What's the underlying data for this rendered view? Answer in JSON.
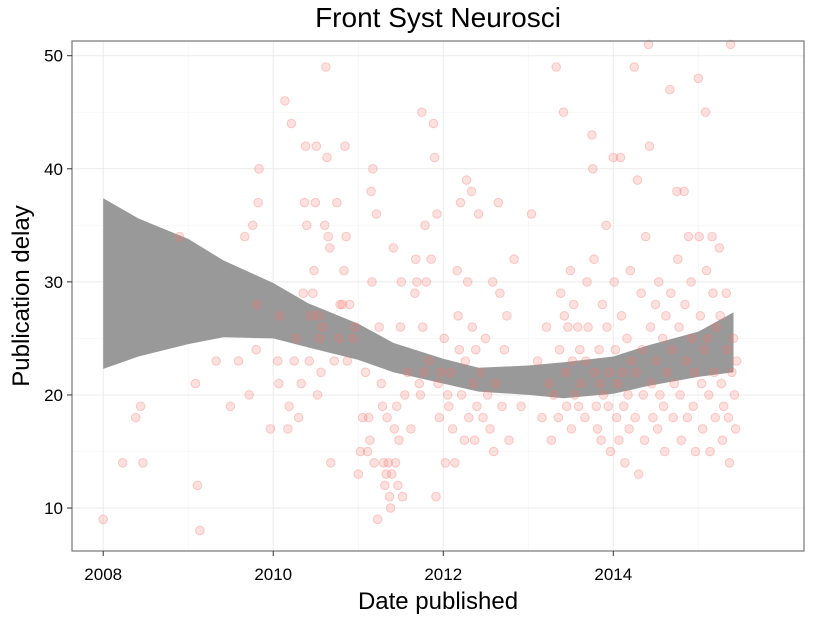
{
  "chart_data": {
    "type": "scatter",
    "title": "Front Syst Neurosci",
    "xlabel": "Date published",
    "ylabel": "Publication delay",
    "x_ticks": [
      "2008",
      "2010",
      "2012",
      "2014"
    ],
    "y_ticks": [
      "10",
      "20",
      "30",
      "40",
      "50"
    ],
    "xlim": [
      "2007-08-20",
      "2016-03-30"
    ],
    "ylim": [
      6.2,
      51.3
    ],
    "grid": true,
    "legend": "none",
    "point_color": "#f8766d",
    "smooth_band_color": "#999999",
    "smooth_line_color": "#888888",
    "points": [
      {
        "x": "2008-01-01",
        "y": 9
      },
      {
        "x": "2008-03-25",
        "y": 14
      },
      {
        "x": "2008-05-20",
        "y": 18
      },
      {
        "x": "2008-06-10",
        "y": 19
      },
      {
        "x": "2008-06-20",
        "y": 14
      },
      {
        "x": "2008-11-25",
        "y": 34
      },
      {
        "x": "2009-02-01",
        "y": 21
      },
      {
        "x": "2009-02-10",
        "y": 12
      },
      {
        "x": "2009-02-20",
        "y": 8
      },
      {
        "x": "2009-05-01",
        "y": 23
      },
      {
        "x": "2009-07-01",
        "y": 19
      },
      {
        "x": "2009-08-05",
        "y": 23
      },
      {
        "x": "2009-09-01",
        "y": 34
      },
      {
        "x": "2009-09-20",
        "y": 20
      },
      {
        "x": "2009-10-05",
        "y": 35
      },
      {
        "x": "2009-10-20",
        "y": 24
      },
      {
        "x": "2009-10-25",
        "y": 28
      },
      {
        "x": "2009-10-28",
        "y": 37
      },
      {
        "x": "2009-11-01",
        "y": 40
      },
      {
        "x": "2009-12-20",
        "y": 17
      },
      {
        "x": "2010-01-20",
        "y": 23
      },
      {
        "x": "2010-01-25",
        "y": 21
      },
      {
        "x": "2010-01-28",
        "y": 27
      },
      {
        "x": "2010-02-20",
        "y": 46
      },
      {
        "x": "2010-03-05",
        "y": 17
      },
      {
        "x": "2010-03-10",
        "y": 19
      },
      {
        "x": "2010-03-20",
        "y": 44
      },
      {
        "x": "2010-04-01",
        "y": 23
      },
      {
        "x": "2010-04-10",
        "y": 25
      },
      {
        "x": "2010-04-20",
        "y": 18
      },
      {
        "x": "2010-05-01",
        "y": 21
      },
      {
        "x": "2010-05-10",
        "y": 29
      },
      {
        "x": "2010-05-15",
        "y": 37
      },
      {
        "x": "2010-05-20",
        "y": 42
      },
      {
        "x": "2010-05-25",
        "y": 35
      },
      {
        "x": "2010-06-05",
        "y": 23
      },
      {
        "x": "2010-06-10",
        "y": 27
      },
      {
        "x": "2010-06-20",
        "y": 29
      },
      {
        "x": "2010-06-25",
        "y": 31
      },
      {
        "x": "2010-07-01",
        "y": 37
      },
      {
        "x": "2010-07-05",
        "y": 42
      },
      {
        "x": "2010-07-10",
        "y": 20
      },
      {
        "x": "2010-07-15",
        "y": 27
      },
      {
        "x": "2010-07-20",
        "y": 25
      },
      {
        "x": "2010-07-25",
        "y": 22
      },
      {
        "x": "2010-08-01",
        "y": 26
      },
      {
        "x": "2010-08-10",
        "y": 35
      },
      {
        "x": "2010-08-15",
        "y": 49
      },
      {
        "x": "2010-08-20",
        "y": 41
      },
      {
        "x": "2010-08-25",
        "y": 34
      },
      {
        "x": "2010-09-01",
        "y": 33
      },
      {
        "x": "2010-09-05",
        "y": 14
      },
      {
        "x": "2010-09-20",
        "y": 23
      },
      {
        "x": "2010-10-01",
        "y": 37
      },
      {
        "x": "2010-10-10",
        "y": 25
      },
      {
        "x": "2010-10-15",
        "y": 28
      },
      {
        "x": "2010-10-25",
        "y": 28
      },
      {
        "x": "2010-11-01",
        "y": 31
      },
      {
        "x": "2010-11-05",
        "y": 42
      },
      {
        "x": "2010-11-10",
        "y": 34
      },
      {
        "x": "2010-11-15",
        "y": 23
      },
      {
        "x": "2010-11-25",
        "y": 28
      },
      {
        "x": "2010-12-10",
        "y": 25
      },
      {
        "x": "2010-12-20",
        "y": 26
      },
      {
        "x": "2011-01-01",
        "y": 13
      },
      {
        "x": "2011-01-10",
        "y": 15
      },
      {
        "x": "2011-01-20",
        "y": 18
      },
      {
        "x": "2011-02-01",
        "y": 22
      },
      {
        "x": "2011-02-10",
        "y": 15
      },
      {
        "x": "2011-02-15",
        "y": 18
      },
      {
        "x": "2011-02-20",
        "y": 16
      },
      {
        "x": "2011-02-25",
        "y": 38
      },
      {
        "x": "2011-03-01",
        "y": 30
      },
      {
        "x": "2011-03-05",
        "y": 40
      },
      {
        "x": "2011-03-10",
        "y": 14
      },
      {
        "x": "2011-03-20",
        "y": 36
      },
      {
        "x": "2011-03-25",
        "y": 9
      },
      {
        "x": "2011-04-01",
        "y": 26
      },
      {
        "x": "2011-04-10",
        "y": 21
      },
      {
        "x": "2011-04-15",
        "y": 19
      },
      {
        "x": "2011-04-20",
        "y": 14
      },
      {
        "x": "2011-04-25",
        "y": 12
      },
      {
        "x": "2011-05-01",
        "y": 13
      },
      {
        "x": "2011-05-05",
        "y": 18
      },
      {
        "x": "2011-05-10",
        "y": 14
      },
      {
        "x": "2011-05-15",
        "y": 11
      },
      {
        "x": "2011-05-20",
        "y": 10
      },
      {
        "x": "2011-05-25",
        "y": 13
      },
      {
        "x": "2011-06-01",
        "y": 33
      },
      {
        "x": "2011-06-05",
        "y": 17
      },
      {
        "x": "2011-06-10",
        "y": 14
      },
      {
        "x": "2011-06-15",
        "y": 19
      },
      {
        "x": "2011-06-20",
        "y": 12
      },
      {
        "x": "2011-06-25",
        "y": 16
      },
      {
        "x": "2011-07-01",
        "y": 26
      },
      {
        "x": "2011-07-05",
        "y": 30
      },
      {
        "x": "2011-07-10",
        "y": 11
      },
      {
        "x": "2011-07-20",
        "y": 20
      },
      {
        "x": "2011-08-01",
        "y": 22
      },
      {
        "x": "2011-08-15",
        "y": 17
      },
      {
        "x": "2011-09-01",
        "y": 29
      },
      {
        "x": "2011-09-05",
        "y": 32
      },
      {
        "x": "2011-09-10",
        "y": 30
      },
      {
        "x": "2011-09-20",
        "y": 21
      },
      {
        "x": "2011-09-25",
        "y": 20
      },
      {
        "x": "2011-10-01",
        "y": 45
      },
      {
        "x": "2011-10-05",
        "y": 26
      },
      {
        "x": "2011-10-10",
        "y": 22
      },
      {
        "x": "2011-10-15",
        "y": 35
      },
      {
        "x": "2011-10-20",
        "y": 30
      },
      {
        "x": "2011-11-01",
        "y": 23
      },
      {
        "x": "2011-11-10",
        "y": 32
      },
      {
        "x": "2011-11-20",
        "y": 44
      },
      {
        "x": "2011-11-25",
        "y": 41
      },
      {
        "x": "2011-12-01",
        "y": 11
      },
      {
        "x": "2011-12-05",
        "y": 36
      },
      {
        "x": "2011-12-10",
        "y": 21
      },
      {
        "x": "2011-12-15",
        "y": 18
      },
      {
        "x": "2011-12-20",
        "y": 22
      },
      {
        "x": "2012-01-05",
        "y": 25
      },
      {
        "x": "2012-01-10",
        "y": 14
      },
      {
        "x": "2012-01-20",
        "y": 20
      },
      {
        "x": "2012-01-25",
        "y": 19
      },
      {
        "x": "2012-02-01",
        "y": 22
      },
      {
        "x": "2012-02-10",
        "y": 17
      },
      {
        "x": "2012-02-20",
        "y": 14
      },
      {
        "x": "2012-03-01",
        "y": 31
      },
      {
        "x": "2012-03-05",
        "y": 27
      },
      {
        "x": "2012-03-10",
        "y": 24
      },
      {
        "x": "2012-03-15",
        "y": 37
      },
      {
        "x": "2012-03-20",
        "y": 20
      },
      {
        "x": "2012-04-01",
        "y": 16
      },
      {
        "x": "2012-04-05",
        "y": 23
      },
      {
        "x": "2012-04-10",
        "y": 39
      },
      {
        "x": "2012-04-15",
        "y": 30
      },
      {
        "x": "2012-04-20",
        "y": 18
      },
      {
        "x": "2012-05-01",
        "y": 38
      },
      {
        "x": "2012-05-05",
        "y": 26
      },
      {
        "x": "2012-05-10",
        "y": 21
      },
      {
        "x": "2012-05-15",
        "y": 16
      },
      {
        "x": "2012-05-20",
        "y": 24
      },
      {
        "x": "2012-05-25",
        "y": 19
      },
      {
        "x": "2012-06-01",
        "y": 36
      },
      {
        "x": "2012-06-10",
        "y": 22
      },
      {
        "x": "2012-06-20",
        "y": 18
      },
      {
        "x": "2012-07-01",
        "y": 25
      },
      {
        "x": "2012-07-10",
        "y": 20
      },
      {
        "x": "2012-07-20",
        "y": 17
      },
      {
        "x": "2012-08-01",
        "y": 30
      },
      {
        "x": "2012-08-05",
        "y": 15
      },
      {
        "x": "2012-08-15",
        "y": 21
      },
      {
        "x": "2012-08-25",
        "y": 37
      },
      {
        "x": "2012-09-01",
        "y": 29
      },
      {
        "x": "2012-09-10",
        "y": 19
      },
      {
        "x": "2012-09-20",
        "y": 24
      },
      {
        "x": "2012-10-01",
        "y": 27
      },
      {
        "x": "2012-10-10",
        "y": 16
      },
      {
        "x": "2012-11-01",
        "y": 32
      },
      {
        "x": "2012-12-01",
        "y": 19
      },
      {
        "x": "2013-01-15",
        "y": 36
      },
      {
        "x": "2013-02-10",
        "y": 23
      },
      {
        "x": "2013-03-01",
        "y": 18
      },
      {
        "x": "2013-03-20",
        "y": 26
      },
      {
        "x": "2013-04-01",
        "y": 21
      },
      {
        "x": "2013-04-10",
        "y": 16
      },
      {
        "x": "2013-04-20",
        "y": 20
      },
      {
        "x": "2013-05-01",
        "y": 49
      },
      {
        "x": "2013-05-10",
        "y": 18
      },
      {
        "x": "2013-05-15",
        "y": 24
      },
      {
        "x": "2013-05-20",
        "y": 29
      },
      {
        "x": "2013-06-01",
        "y": 45
      },
      {
        "x": "2013-06-05",
        "y": 27
      },
      {
        "x": "2013-06-10",
        "y": 22
      },
      {
        "x": "2013-06-15",
        "y": 19
      },
      {
        "x": "2013-06-20",
        "y": 26
      },
      {
        "x": "2013-07-01",
        "y": 31
      },
      {
        "x": "2013-07-05",
        "y": 17
      },
      {
        "x": "2013-07-10",
        "y": 23
      },
      {
        "x": "2013-07-15",
        "y": 28
      },
      {
        "x": "2013-07-20",
        "y": 20
      },
      {
        "x": "2013-08-01",
        "y": 26
      },
      {
        "x": "2013-08-05",
        "y": 19
      },
      {
        "x": "2013-08-10",
        "y": 24
      },
      {
        "x": "2013-08-15",
        "y": 21
      },
      {
        "x": "2013-09-01",
        "y": 18
      },
      {
        "x": "2013-09-05",
        "y": 23
      },
      {
        "x": "2013-09-10",
        "y": 30
      },
      {
        "x": "2013-09-15",
        "y": 26
      },
      {
        "x": "2013-10-01",
        "y": 43
      },
      {
        "x": "2013-10-05",
        "y": 40
      },
      {
        "x": "2013-10-10",
        "y": 32
      },
      {
        "x": "2013-10-15",
        "y": 22
      },
      {
        "x": "2013-10-20",
        "y": 19
      },
      {
        "x": "2013-10-25",
        "y": 17
      },
      {
        "x": "2013-11-01",
        "y": 24
      },
      {
        "x": "2013-11-05",
        "y": 21
      },
      {
        "x": "2013-11-10",
        "y": 16
      },
      {
        "x": "2013-11-15",
        "y": 28
      },
      {
        "x": "2013-11-20",
        "y": 20
      },
      {
        "x": "2013-12-01",
        "y": 35
      },
      {
        "x": "2013-12-05",
        "y": 26
      },
      {
        "x": "2013-12-10",
        "y": 19
      },
      {
        "x": "2013-12-15",
        "y": 22
      },
      {
        "x": "2013-12-20",
        "y": 15
      },
      {
        "x": "2014-01-01",
        "y": 41
      },
      {
        "x": "2014-01-05",
        "y": 30
      },
      {
        "x": "2014-01-10",
        "y": 24
      },
      {
        "x": "2014-01-15",
        "y": 18
      },
      {
        "x": "2014-01-20",
        "y": 21
      },
      {
        "x": "2014-01-25",
        "y": 16
      },
      {
        "x": "2014-02-01",
        "y": 41
      },
      {
        "x": "2014-02-05",
        "y": 27
      },
      {
        "x": "2014-02-10",
        "y": 22
      },
      {
        "x": "2014-02-15",
        "y": 19
      },
      {
        "x": "2014-02-20",
        "y": 14
      },
      {
        "x": "2014-03-01",
        "y": 25
      },
      {
        "x": "2014-03-05",
        "y": 20
      },
      {
        "x": "2014-03-10",
        "y": 17
      },
      {
        "x": "2014-03-15",
        "y": 31
      },
      {
        "x": "2014-03-20",
        "y": 23
      },
      {
        "x": "2014-04-01",
        "y": 49
      },
      {
        "x": "2014-04-05",
        "y": 18
      },
      {
        "x": "2014-04-10",
        "y": 22
      },
      {
        "x": "2014-04-15",
        "y": 39
      },
      {
        "x": "2014-04-20",
        "y": 13
      },
      {
        "x": "2014-05-01",
        "y": 29
      },
      {
        "x": "2014-05-05",
        "y": 24
      },
      {
        "x": "2014-05-10",
        "y": 20
      },
      {
        "x": "2014-05-15",
        "y": 16
      },
      {
        "x": "2014-05-20",
        "y": 34
      },
      {
        "x": "2014-06-01",
        "y": 51
      },
      {
        "x": "2014-06-05",
        "y": 42
      },
      {
        "x": "2014-06-10",
        "y": 26
      },
      {
        "x": "2014-06-15",
        "y": 21
      },
      {
        "x": "2014-06-20",
        "y": 18
      },
      {
        "x": "2014-07-01",
        "y": 28
      },
      {
        "x": "2014-07-05",
        "y": 23
      },
      {
        "x": "2014-07-10",
        "y": 17
      },
      {
        "x": "2014-07-15",
        "y": 30
      },
      {
        "x": "2014-07-20",
        "y": 20
      },
      {
        "x": "2014-08-01",
        "y": 25
      },
      {
        "x": "2014-08-05",
        "y": 19
      },
      {
        "x": "2014-08-10",
        "y": 15
      },
      {
        "x": "2014-08-15",
        "y": 27
      },
      {
        "x": "2014-08-20",
        "y": 22
      },
      {
        "x": "2014-09-01",
        "y": 47
      },
      {
        "x": "2014-09-05",
        "y": 29
      },
      {
        "x": "2014-09-10",
        "y": 24
      },
      {
        "x": "2014-09-15",
        "y": 18
      },
      {
        "x": "2014-09-20",
        "y": 21
      },
      {
        "x": "2014-10-01",
        "y": 38
      },
      {
        "x": "2014-10-05",
        "y": 32
      },
      {
        "x": "2014-10-10",
        "y": 26
      },
      {
        "x": "2014-10-15",
        "y": 20
      },
      {
        "x": "2014-10-20",
        "y": 16
      },
      {
        "x": "2014-11-01",
        "y": 38
      },
      {
        "x": "2014-11-05",
        "y": 28
      },
      {
        "x": "2014-11-10",
        "y": 23
      },
      {
        "x": "2014-11-15",
        "y": 18
      },
      {
        "x": "2014-11-20",
        "y": 34
      },
      {
        "x": "2014-12-01",
        "y": 30
      },
      {
        "x": "2014-12-05",
        "y": 25
      },
      {
        "x": "2014-12-10",
        "y": 19
      },
      {
        "x": "2014-12-15",
        "y": 22
      },
      {
        "x": "2014-12-20",
        "y": 15
      },
      {
        "x": "2015-01-01",
        "y": 48
      },
      {
        "x": "2015-01-05",
        "y": 34
      },
      {
        "x": "2015-01-10",
        "y": 27
      },
      {
        "x": "2015-01-15",
        "y": 21
      },
      {
        "x": "2015-01-20",
        "y": 17
      },
      {
        "x": "2015-01-25",
        "y": 24
      },
      {
        "x": "2015-02-01",
        "y": 45
      },
      {
        "x": "2015-02-05",
        "y": 31
      },
      {
        "x": "2015-02-10",
        "y": 25
      },
      {
        "x": "2015-02-15",
        "y": 20
      },
      {
        "x": "2015-02-20",
        "y": 15
      },
      {
        "x": "2015-03-01",
        "y": 34
      },
      {
        "x": "2015-03-05",
        "y": 29
      },
      {
        "x": "2015-03-10",
        "y": 22
      },
      {
        "x": "2015-03-15",
        "y": 18
      },
      {
        "x": "2015-03-20",
        "y": 26
      },
      {
        "x": "2015-04-01",
        "y": 33
      },
      {
        "x": "2015-04-05",
        "y": 27
      },
      {
        "x": "2015-04-10",
        "y": 21
      },
      {
        "x": "2015-04-15",
        "y": 16
      },
      {
        "x": "2015-04-20",
        "y": 19
      },
      {
        "x": "2015-05-01",
        "y": 29
      },
      {
        "x": "2015-05-05",
        "y": 24
      },
      {
        "x": "2015-05-10",
        "y": 18
      },
      {
        "x": "2015-05-15",
        "y": 14
      },
      {
        "x": "2015-05-20",
        "y": 51
      },
      {
        "x": "2015-05-25",
        "y": 22
      },
      {
        "x": "2015-06-01",
        "y": 25
      },
      {
        "x": "2015-06-05",
        "y": 20
      },
      {
        "x": "2015-06-10",
        "y": 17
      },
      {
        "x": "2015-06-15",
        "y": 23
      }
    ],
    "smooth": {
      "x": [
        "2008-01-01",
        "2008-06-01",
        "2009-01-01",
        "2009-06-01",
        "2010-01-01",
        "2010-06-01",
        "2011-01-01",
        "2011-06-01",
        "2012-01-01",
        "2012-06-01",
        "2013-01-01",
        "2013-06-01",
        "2014-01-01",
        "2014-06-01",
        "2015-01-01",
        "2015-06-01"
      ],
      "upper": [
        37.4,
        35.6,
        33.8,
        31.9,
        29.9,
        28.1,
        26.3,
        24.6,
        23.2,
        22.4,
        22.6,
        22.9,
        23.4,
        24.4,
        25.6,
        27.3
      ],
      "lower": [
        22.3,
        23.4,
        24.5,
        25.1,
        25.0,
        24.2,
        23.1,
        22.0,
        21.0,
        20.3,
        20.0,
        19.7,
        20.1,
        20.8,
        21.6,
        22.0
      ]
    }
  }
}
